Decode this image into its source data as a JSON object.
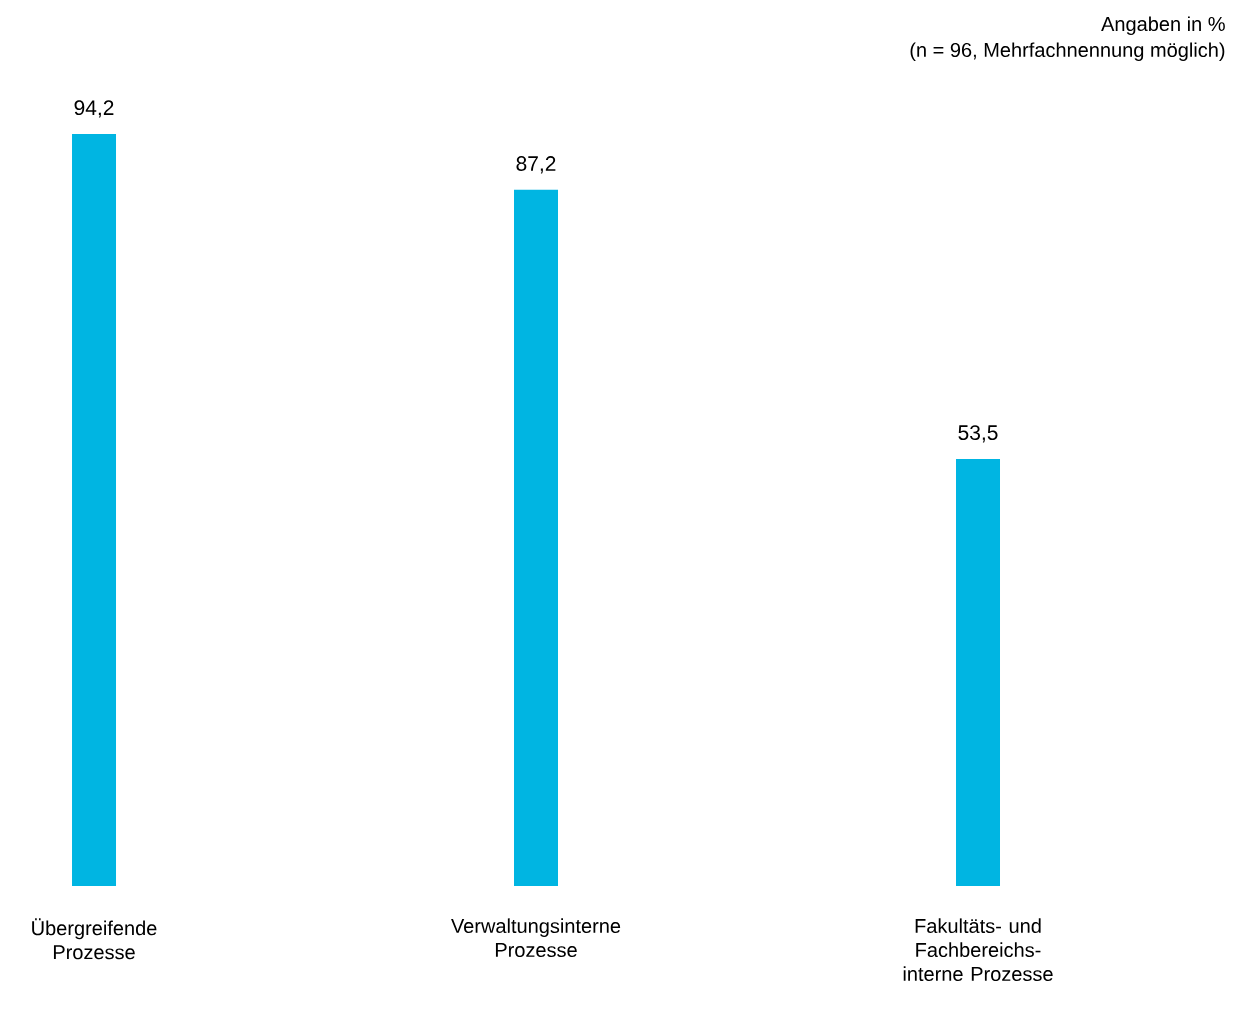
{
  "chart_data": {
    "type": "bar",
    "categories": [
      "Übergreifende Prozesse",
      "Verwaltungsinterne Prozesse",
      "Fakultäts- und Fachbereichs-interne Prozesse"
    ],
    "values": [
      94.2,
      87.2,
      53.5
    ],
    "value_labels": [
      "94,2",
      "87,2",
      "53,5"
    ],
    "color": "#00b5e2",
    "annotations": [
      "Angaben in %",
      "(n = 96, Mehrfachnennung möglich)"
    ]
  }
}
